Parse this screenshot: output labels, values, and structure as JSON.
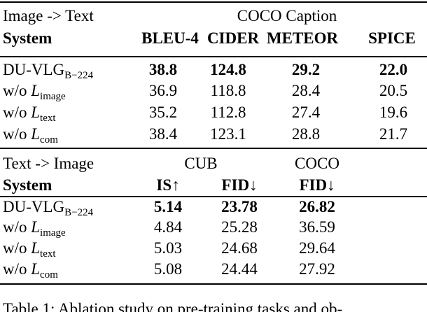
{
  "top_table": {
    "task": "Image -> Text",
    "dataset": "COCO Caption",
    "columns": [
      "System",
      "BLEU-4",
      "CIDER",
      "METEOR",
      "SPICE"
    ],
    "rows": [
      {
        "system": {
          "name": "DU-VLG",
          "sub": "B−224"
        },
        "values": [
          "38.8",
          "124.8",
          "29.2",
          "22.0"
        ]
      },
      {
        "system": {
          "prefix": "w/o",
          "symbol": "L",
          "sub": "image"
        },
        "values": [
          "36.9",
          "118.8",
          "28.4",
          "20.5"
        ]
      },
      {
        "system": {
          "prefix": "w/o",
          "symbol": "L",
          "sub": "text"
        },
        "values": [
          "35.2",
          "112.8",
          "27.4",
          "19.6"
        ]
      },
      {
        "system": {
          "prefix": "w/o",
          "symbol": "L",
          "sub": "com"
        },
        "values": [
          "38.4",
          "123.1",
          "28.8",
          "21.7"
        ]
      }
    ]
  },
  "bottom_table": {
    "task": "Text -> Image",
    "datasets": [
      "CUB",
      "COCO"
    ],
    "columns": [
      "System",
      "IS↑",
      "FID↓",
      "FID↓"
    ],
    "rows": [
      {
        "system": {
          "name": "DU-VLG",
          "sub": "B−224"
        },
        "values": [
          "5.14",
          "23.78",
          "26.82"
        ]
      },
      {
        "system": {
          "prefix": "w/o",
          "symbol": "L",
          "sub": "image"
        },
        "values": [
          "4.84",
          "25.28",
          "36.59"
        ]
      },
      {
        "system": {
          "prefix": "w/o",
          "symbol": "L",
          "sub": "text"
        },
        "values": [
          "5.03",
          "24.68",
          "29.64"
        ]
      },
      {
        "system": {
          "prefix": "w/o",
          "symbol": "L",
          "sub": "com"
        },
        "values": [
          "5.08",
          "24.44",
          "27.92"
        ]
      }
    ]
  },
  "caption": "Table 1: Ablation study on pre-training tasks and ob-"
}
